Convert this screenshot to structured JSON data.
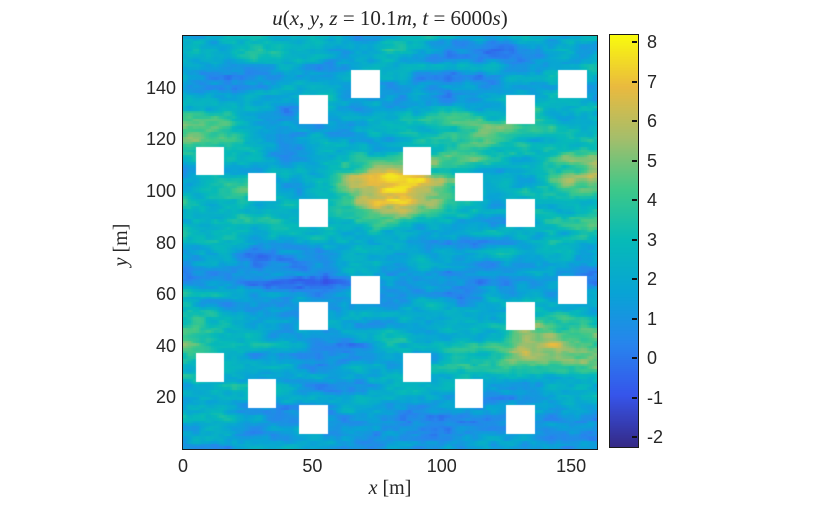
{
  "figure": {
    "background": "#ffffff",
    "title": "u(x, y, z = 10.1m, t = 6000s)"
  },
  "chart_data": {
    "type": "heatmap",
    "title": "u(x, y, z = 10.1m, t = 6000s)",
    "title_segments": [
      {
        "text": "u",
        "italic": true
      },
      {
        "text": "(",
        "italic": false
      },
      {
        "text": "x",
        "italic": true
      },
      {
        "text": ", ",
        "italic": false
      },
      {
        "text": "y",
        "italic": true
      },
      {
        "text": ", ",
        "italic": false
      },
      {
        "text": "z",
        "italic": true
      },
      {
        "text": " = 10.1",
        "italic": false
      },
      {
        "text": "m",
        "italic": true
      },
      {
        "text": ", ",
        "italic": false
      },
      {
        "text": "t",
        "italic": true
      },
      {
        "text": " = 6000",
        "italic": false
      },
      {
        "text": "s",
        "italic": true
      },
      {
        "text": ")",
        "italic": false
      }
    ],
    "xlabel": "x [m]",
    "xlabel_var": "x",
    "xlabel_unit": " [m]",
    "ylabel": "y [m]",
    "ylabel_var": "y",
    "ylabel_unit": " [m]",
    "x_range": [
      0,
      160
    ],
    "y_range": [
      0,
      160
    ],
    "x_ticks": [
      0,
      50,
      100,
      150
    ],
    "y_ticks": [
      20,
      40,
      60,
      80,
      100,
      120,
      140
    ],
    "grid_resolution": [
      160,
      160
    ],
    "color_range": [
      -2.25,
      8.18
    ],
    "colorbar_ticks": [
      -2,
      -1,
      0,
      1,
      2,
      3,
      4,
      5,
      6,
      7,
      8
    ],
    "colormap": "parula",
    "colormap_stops": [
      [
        0.0,
        "#352a87"
      ],
      [
        0.125,
        "#3655eb"
      ],
      [
        0.25,
        "#2785ed"
      ],
      [
        0.375,
        "#08a4d5"
      ],
      [
        0.5,
        "#06bab8"
      ],
      [
        0.625,
        "#3ec889"
      ],
      [
        0.75,
        "#a5be6b"
      ],
      [
        0.875,
        "#eaba3f"
      ],
      [
        1.0,
        "#f9fb0e"
      ]
    ],
    "obstacles": {
      "comment_semantics": "white square cut-outs (buildings) in the field",
      "size_m": 11,
      "positions": [
        [
          5,
          26
        ],
        [
          25,
          16
        ],
        [
          45,
          6
        ],
        [
          45,
          46
        ],
        [
          65,
          56
        ],
        [
          85,
          26
        ],
        [
          105,
          16
        ],
        [
          125,
          6
        ],
        [
          125,
          46
        ],
        [
          145,
          56
        ],
        [
          5,
          106
        ],
        [
          25,
          96
        ],
        [
          45,
          86
        ],
        [
          45,
          126
        ],
        [
          65,
          136
        ],
        [
          85,
          106
        ],
        [
          105,
          96
        ],
        [
          125,
          86
        ],
        [
          125,
          126
        ],
        [
          145,
          136
        ]
      ]
    },
    "coarse_field": {
      "comment_semantics": "approximate mean u-velocity on a 16x16 grid (10 m cells), rows listed bottom (y=0-10) to top (y=150-160), columns left (x=0-10) to right (x=150-160)",
      "x0": 5,
      "y0": 5,
      "dx": 10,
      "dy": 10,
      "rows_bottom_to_top": [
        [
          1.6,
          1.3,
          1.1,
          1.8,
          2.2,
          2.0,
          1.5,
          1.2,
          1.4,
          1.1,
          1.3,
          1.6,
          1.3,
          1.1,
          1.4,
          1.6
        ],
        [
          2.0,
          2.4,
          1.8,
          1.4,
          1.3,
          1.6,
          2.2,
          2.4,
          1.8,
          1.4,
          1.2,
          1.1,
          1.5,
          1.9,
          1.5,
          1.3
        ],
        [
          2.6,
          2.9,
          2.3,
          1.8,
          1.5,
          1.3,
          1.6,
          2.1,
          2.6,
          2.8,
          2.2,
          1.7,
          1.4,
          1.3,
          1.6,
          2.0
        ],
        [
          3.2,
          2.6,
          2.0,
          1.5,
          1.2,
          1.1,
          1.3,
          1.6,
          2.0,
          2.4,
          2.8,
          3.4,
          4.6,
          5.6,
          6.2,
          5.6
        ],
        [
          5.2,
          4.4,
          2.9,
          2.0,
          1.5,
          1.3,
          1.6,
          2.0,
          2.4,
          2.1,
          2.4,
          3.0,
          4.0,
          5.0,
          5.4,
          4.8
        ],
        [
          2.6,
          2.0,
          1.5,
          1.2,
          1.0,
          0.8,
          1.0,
          1.3,
          1.6,
          2.0,
          1.9,
          1.6,
          2.0,
          2.4,
          2.0,
          1.6
        ],
        [
          1.5,
          1.2,
          1.0,
          0.7,
          0.4,
          0.4,
          0.7,
          1.0,
          1.2,
          1.5,
          1.2,
          1.0,
          1.2,
          1.5,
          1.3,
          1.1
        ],
        [
          2.0,
          1.6,
          1.2,
          1.0,
          1.2,
          1.6,
          2.1,
          2.4,
          2.0,
          1.5,
          1.2,
          1.5,
          2.0,
          1.6,
          1.3,
          1.6
        ],
        [
          3.0,
          3.4,
          2.9,
          2.4,
          2.1,
          2.5,
          3.1,
          3.4,
          2.9,
          2.4,
          2.0,
          1.6,
          2.1,
          2.5,
          3.0,
          3.3
        ],
        [
          2.6,
          3.1,
          3.5,
          2.9,
          2.5,
          3.1,
          4.2,
          6.0,
          6.5,
          5.0,
          3.4,
          2.5,
          2.1,
          2.5,
          3.0,
          3.5
        ],
        [
          2.1,
          2.5,
          3.0,
          2.5,
          2.1,
          3.1,
          5.2,
          6.6,
          7.0,
          5.8,
          3.9,
          2.5,
          2.0,
          2.2,
          4.0,
          5.2
        ],
        [
          3.1,
          3.5,
          2.6,
          2.0,
          1.6,
          2.0,
          2.5,
          3.1,
          3.5,
          3.0,
          3.5,
          4.1,
          3.1,
          2.5,
          3.6,
          4.1
        ],
        [
          4.6,
          4.0,
          3.0,
          2.0,
          1.5,
          1.3,
          1.6,
          2.1,
          2.6,
          3.1,
          4.1,
          5.0,
          4.4,
          3.4,
          2.5,
          2.1
        ],
        [
          2.1,
          1.6,
          1.3,
          1.1,
          1.3,
          1.6,
          2.1,
          2.5,
          2.0,
          1.5,
          1.2,
          1.5,
          2.0,
          2.4,
          2.0,
          1.6
        ],
        [
          1.6,
          1.3,
          1.1,
          1.3,
          1.6,
          2.0,
          2.4,
          2.0,
          1.5,
          0.8,
          0.6,
          1.1,
          1.6,
          2.0,
          2.4,
          2.0
        ],
        [
          2.1,
          2.5,
          2.9,
          2.5,
          2.0,
          1.6,
          2.1,
          2.5,
          2.9,
          2.5,
          2.0,
          1.6,
          1.3,
          1.6,
          2.0,
          2.4
        ]
      ]
    },
    "turbulence_noise": {
      "seed": 1337,
      "octaves": [
        {
          "sx_m": 13.3,
          "sy_m": 4.0,
          "amp": 1.15
        },
        {
          "sx_m": 5.7,
          "sy_m": 2.0,
          "amp": 0.75
        },
        {
          "sx_m": 2.5,
          "sy_m": 1.3,
          "amp": 0.5
        }
      ]
    },
    "legend_position": "right-colorbar",
    "grid": false
  }
}
